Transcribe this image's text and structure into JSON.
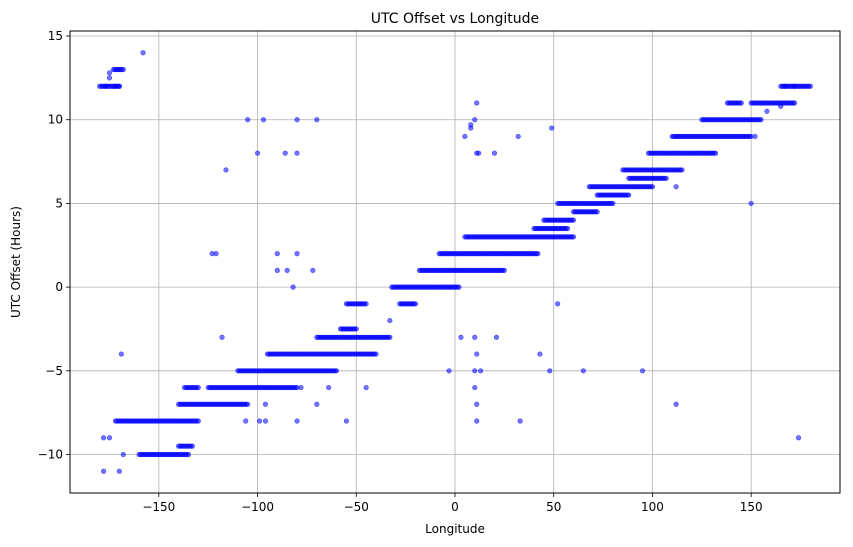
{
  "chart_data": {
    "type": "scatter",
    "title": "UTC Offset vs Longitude",
    "xlabel": "Longitude",
    "ylabel": "UTC Offset (Hours)",
    "xlim": [
      -195,
      195
    ],
    "ylim": [
      -12.3,
      15.3
    ],
    "xticks": [
      -150,
      -100,
      -50,
      0,
      50,
      100,
      150
    ],
    "yticks": [
      -10,
      -5,
      0,
      5,
      10,
      15
    ],
    "xtick_labels": [
      "−150",
      "−100",
      "−50",
      "0",
      "50",
      "100",
      "150"
    ],
    "ytick_labels": [
      "−10",
      "−5",
      "0",
      "5",
      "10",
      "15"
    ],
    "grid": true,
    "point_color": "#0000ff",
    "bands": [
      {
        "x0": -180,
        "x1": -170,
        "y": 12
      },
      {
        "x0": -173,
        "x1": -168,
        "y": 13
      },
      {
        "x0": -172,
        "x1": -130,
        "y": -8
      },
      {
        "x0": -160,
        "x1": -135,
        "y": -10
      },
      {
        "x0": -140,
        "x1": -133,
        "y": -9.5
      },
      {
        "x0": -137,
        "x1": -130,
        "y": -6
      },
      {
        "x0": -140,
        "x1": -105,
        "y": -7
      },
      {
        "x0": -125,
        "x1": -80,
        "y": -6
      },
      {
        "x0": -110,
        "x1": -60,
        "y": -5
      },
      {
        "x0": -95,
        "x1": -40,
        "y": -4
      },
      {
        "x0": -70,
        "x1": -33,
        "y": -3
      },
      {
        "x0": -58,
        "x1": -50,
        "y": -2.5
      },
      {
        "x0": -55,
        "x1": -45,
        "y": -1
      },
      {
        "x0": -32,
        "x1": 2,
        "y": 0
      },
      {
        "x0": -28,
        "x1": -20,
        "y": -1
      },
      {
        "x0": -18,
        "x1": 25,
        "y": 1
      },
      {
        "x0": -8,
        "x1": 42,
        "y": 2
      },
      {
        "x0": 5,
        "x1": 60,
        "y": 3
      },
      {
        "x0": 40,
        "x1": 57,
        "y": 3.5
      },
      {
        "x0": 45,
        "x1": 60,
        "y": 4
      },
      {
        "x0": 52,
        "x1": 80,
        "y": 5
      },
      {
        "x0": 60,
        "x1": 72,
        "y": 4.5
      },
      {
        "x0": 72,
        "x1": 88,
        "y": 5.5
      },
      {
        "x0": 68,
        "x1": 100,
        "y": 6
      },
      {
        "x0": 88,
        "x1": 107,
        "y": 6.5
      },
      {
        "x0": 85,
        "x1": 115,
        "y": 7
      },
      {
        "x0": 98,
        "x1": 132,
        "y": 8
      },
      {
        "x0": 110,
        "x1": 150,
        "y": 9
      },
      {
        "x0": 125,
        "x1": 155,
        "y": 10
      },
      {
        "x0": 138,
        "x1": 145,
        "y": 11
      },
      {
        "x0": 150,
        "x1": 172,
        "y": 11
      },
      {
        "x0": 165,
        "x1": 180,
        "y": 12
      }
    ],
    "points": [
      [
        -158,
        14
      ],
      [
        -172,
        12
      ],
      [
        -177,
        12
      ],
      [
        -175,
        12.5
      ],
      [
        -175,
        12.8
      ],
      [
        -170,
        12
      ],
      [
        -178,
        -11
      ],
      [
        -170,
        -11
      ],
      [
        -168,
        -10
      ],
      [
        -175,
        -9
      ],
      [
        -178,
        -9
      ],
      [
        -169,
        -4
      ],
      [
        -123,
        2
      ],
      [
        -121,
        2
      ],
      [
        -90,
        1
      ],
      [
        -85,
        1
      ],
      [
        -90,
        2
      ],
      [
        -80,
        2
      ],
      [
        -72,
        1
      ],
      [
        -82,
        0
      ],
      [
        -116,
        7
      ],
      [
        -100,
        8
      ],
      [
        -86,
        8
      ],
      [
        -80,
        8
      ],
      [
        -105,
        10
      ],
      [
        -97,
        10
      ],
      [
        -80,
        10
      ],
      [
        -70,
        10
      ],
      [
        -118,
        -3
      ],
      [
        -106,
        -8
      ],
      [
        -99,
        -8
      ],
      [
        -96,
        -8
      ],
      [
        -80,
        -8
      ],
      [
        -55,
        -8
      ],
      [
        -96,
        -7
      ],
      [
        -78,
        -6
      ],
      [
        -64,
        -6
      ],
      [
        -45,
        -6
      ],
      [
        -70,
        -7
      ],
      [
        -33,
        -2
      ],
      [
        -3,
        -5
      ],
      [
        3,
        -3
      ],
      [
        10,
        -3
      ],
      [
        11,
        -4
      ],
      [
        13,
        -5
      ],
      [
        10,
        -5
      ],
      [
        10,
        -6
      ],
      [
        11,
        -7
      ],
      [
        11,
        -8
      ],
      [
        21,
        -3
      ],
      [
        33,
        -8
      ],
      [
        5,
        9
      ],
      [
        8,
        9.5
      ],
      [
        10,
        10
      ],
      [
        11,
        11
      ],
      [
        12,
        8
      ],
      [
        20,
        8
      ],
      [
        32,
        9
      ],
      [
        49,
        9.5
      ],
      [
        11,
        8
      ],
      [
        8,
        9.7
      ],
      [
        43,
        -4
      ],
      [
        48,
        -5
      ],
      [
        52,
        -1
      ],
      [
        65,
        -5
      ],
      [
        95,
        -5
      ],
      [
        112,
        -7
      ],
      [
        150,
        5
      ],
      [
        112,
        6
      ],
      [
        174,
        -9
      ],
      [
        158,
        10.5
      ],
      [
        167,
        12
      ],
      [
        172,
        12
      ],
      [
        165,
        10.8
      ],
      [
        152,
        9
      ]
    ]
  }
}
